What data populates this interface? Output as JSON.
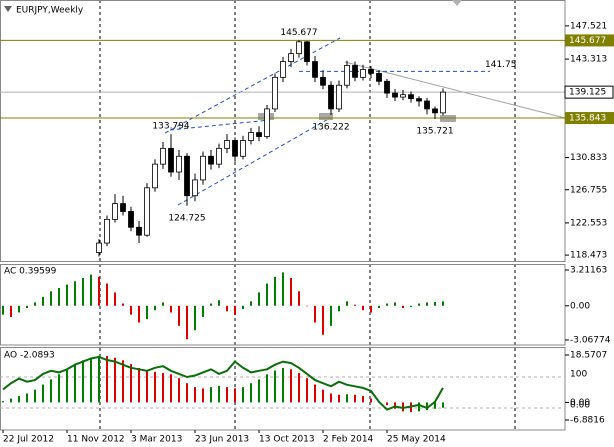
{
  "chart_data": [
    {
      "type": "candlestick",
      "title": "EURJPY,Weekly",
      "x": [
        24,
        26,
        28,
        30,
        32,
        34,
        36,
        38,
        40,
        42,
        44,
        46,
        48,
        50,
        52,
        54,
        56,
        58,
        60,
        62,
        64,
        66,
        68,
        70,
        72,
        74,
        76,
        78,
        80,
        82,
        84,
        86,
        88,
        90,
        92,
        94,
        96,
        98,
        100,
        102,
        104,
        106,
        108,
        110
      ],
      "open": [
        118.8,
        120,
        123,
        125,
        124,
        122,
        121,
        127,
        130,
        132,
        129,
        131,
        126,
        128,
        131,
        130,
        132,
        133,
        131,
        133,
        134,
        133.5,
        137,
        141,
        143,
        144,
        145.5,
        143,
        141,
        140,
        137,
        140,
        142.5,
        141,
        142,
        141.5,
        140.5,
        139,
        138.5,
        138.8,
        138.3,
        138,
        137,
        136.5
      ],
      "high": [
        120.5,
        123.5,
        126.2,
        126,
        124.6,
        122.8,
        127.6,
        130.6,
        132.8,
        133.794,
        131.8,
        131.4,
        128.8,
        131.6,
        131.8,
        132.6,
        133.8,
        133.4,
        133.6,
        134.6,
        134.8,
        137.5,
        141.5,
        143.6,
        144.6,
        145.677,
        145.6,
        143.7,
        141.9,
        140.5,
        140.6,
        143.1,
        143,
        142.6,
        142.4,
        141.9,
        140.8,
        139.5,
        139.4,
        139.2,
        138.6,
        138.4,
        137.3,
        139.6
      ],
      "low": [
        118.3,
        119.6,
        122.6,
        123.5,
        121.5,
        120,
        120.8,
        126.5,
        129.4,
        128.4,
        128,
        124.725,
        125.3,
        127.4,
        129.3,
        129.5,
        131.4,
        130.3,
        130.6,
        132.5,
        132.9,
        133.2,
        136.6,
        140.4,
        142.3,
        143.5,
        142.5,
        140.4,
        139.5,
        136.222,
        136.6,
        139.6,
        140.5,
        140.6,
        140.9,
        140,
        138.4,
        138,
        138.1,
        137.8,
        137.3,
        136.3,
        135.721,
        136.2
      ],
      "close": [
        120,
        123,
        125,
        124,
        122,
        121,
        127,
        130,
        132,
        129,
        131,
        126,
        128,
        131,
        130,
        132,
        133,
        131,
        133,
        134,
        133.5,
        137,
        141,
        143,
        144,
        145.5,
        143,
        141,
        140,
        137,
        140,
        142.5,
        141,
        142,
        141.5,
        140.5,
        139,
        138.5,
        138.8,
        138.3,
        138,
        137,
        136.5,
        139.125
      ],
      "up_color": "#ffffff",
      "down_color": "#000000",
      "xlim": [
        -0.75,
        140.5
      ],
      "ylim": [
        117.6,
        150.8
      ],
      "yticks": [
        147.521,
        143.313,
        130.833,
        126.755,
        122.553,
        118.473
      ],
      "levels": [
        145.677,
        135.843
      ],
      "level_color": "#808000",
      "bid": 139.125,
      "resistance": 141.75,
      "resistance_color": "#1e50c8",
      "annotations": [
        {
          "x": 74,
          "value": 145.677
        },
        {
          "x": 42,
          "value": 133.794
        },
        {
          "x": 46,
          "value": 124.725
        },
        {
          "x": 82,
          "value": 136.222
        },
        {
          "x": 108,
          "value": 135.721
        }
      ]
    },
    {
      "type": "bar",
      "title": "AC 0.39599",
      "x": [
        0,
        2,
        4,
        6,
        8,
        10,
        12,
        14,
        16,
        18,
        20,
        22,
        24,
        26,
        28,
        30,
        32,
        34,
        36,
        38,
        40,
        42,
        44,
        46,
        48,
        50,
        52,
        54,
        56,
        58,
        60,
        62,
        64,
        66,
        68,
        70,
        72,
        74,
        76,
        78,
        80,
        82,
        84,
        86,
        88,
        90,
        92,
        94,
        96,
        98,
        100,
        102,
        104,
        106,
        108,
        110
      ],
      "values": [
        -0.8,
        -1.0,
        -0.6,
        -0.2,
        0.3,
        0.8,
        1.3,
        1.6,
        1.9,
        2.2,
        2.5,
        2.8,
        2.6,
        2.0,
        1.2,
        0.2,
        -0.8,
        -1.5,
        -1.2,
        -0.4,
        0.3,
        -0.6,
        -1.8,
        -3.0,
        -2.2,
        -1.0,
        0.2,
        0.5,
        -0.5,
        -0.8,
        -0.3,
        0.4,
        1.2,
        2.0,
        2.6,
        3.0,
        2.5,
        1.3,
        0.0,
        -1.5,
        -2.6,
        -1.8,
        -0.5,
        0.4,
        0.1,
        -0.4,
        -0.6,
        -0.2,
        0.2,
        0.3,
        -0.2,
        -0.1,
        0.2,
        0.3,
        0.35,
        0.39599
      ],
      "up_color": "#008000",
      "down_color": "#e00000",
      "xlim": [
        -0.75,
        140.5
      ],
      "ylim": [
        -3.52,
        3.75
      ],
      "yticks": [
        3.21163,
        {
          "value": 0,
          "label": "0.00"
        },
        -3.06774
      ]
    },
    {
      "type": "bar",
      "title": "AO -2.0893",
      "x": [
        0,
        2,
        4,
        6,
        8,
        10,
        12,
        14,
        16,
        18,
        20,
        22,
        24,
        26,
        28,
        30,
        32,
        34,
        36,
        38,
        40,
        42,
        44,
        46,
        48,
        50,
        52,
        54,
        56,
        58,
        60,
        62,
        64,
        66,
        68,
        70,
        72,
        74,
        76,
        78,
        80,
        82,
        84,
        86,
        88,
        90,
        92,
        94,
        96,
        98,
        100,
        102,
        104,
        106,
        108,
        110
      ],
      "values": [
        0.5,
        1.5,
        2.5,
        3.5,
        5,
        7,
        9,
        11,
        13,
        15,
        16.5,
        17.5,
        18.3,
        18.2,
        17.5,
        16.5,
        15,
        13.5,
        12.5,
        12,
        11.5,
        11,
        9.5,
        7.5,
        6,
        5.5,
        6,
        6.5,
        6,
        5.5,
        6,
        7.5,
        9,
        11,
        12.5,
        13.5,
        13,
        11.5,
        9.5,
        7,
        5,
        3.5,
        3,
        3.2,
        3,
        2.5,
        1.5,
        0.5,
        -1,
        -2.5,
        -3.5,
        -3.8,
        -3.5,
        -3,
        -2.5,
        -2.0893
      ],
      "up_color": "#008000",
      "down_color": "#e00000",
      "line": {
        "values": [
          60,
          80,
          95,
          85,
          90,
          110,
          120,
          115,
          125,
          140,
          150,
          160,
          165,
          155,
          150,
          140,
          130,
          125,
          120,
          130,
          135,
          120,
          110,
          100,
          105,
          115,
          125,
          110,
          120,
          150,
          130,
          115,
          120,
          125,
          140,
          150,
          145,
          130,
          110,
          90,
          80,
          70,
          85,
          75,
          70,
          65,
          55,
          20,
          -5,
          5,
          0,
          5,
          10,
          0,
          20,
          65
        ],
        "axis": "y2",
        "color": "#0a6e0a"
      },
      "xlim": [
        -0.75,
        140.5
      ],
      "ylim": [
        -10.8,
        21.7
      ],
      "yticks": [
        18.5707,
        {
          "value": 0,
          "label": "0.00"
        },
        -6.8816
      ],
      "y2lim": [
        -71,
        197
      ],
      "y2ticks": [
        100,
        {
          "value": 0,
          "label": "0.00"
        }
      ],
      "xticks": [
        {
          "value": 0,
          "label": "22 Jul 2012"
        },
        {
          "value": 16,
          "label": "11 Nov 2012"
        },
        {
          "value": 32,
          "label": "3 Mar 2013"
        },
        {
          "value": 48,
          "label": "23 Jun 2013"
        },
        {
          "value": 64,
          "label": "13 Oct 2013"
        },
        {
          "value": 80,
          "label": "2 Feb 2014"
        },
        {
          "value": 96,
          "label": "25 May 2014"
        }
      ]
    }
  ]
}
